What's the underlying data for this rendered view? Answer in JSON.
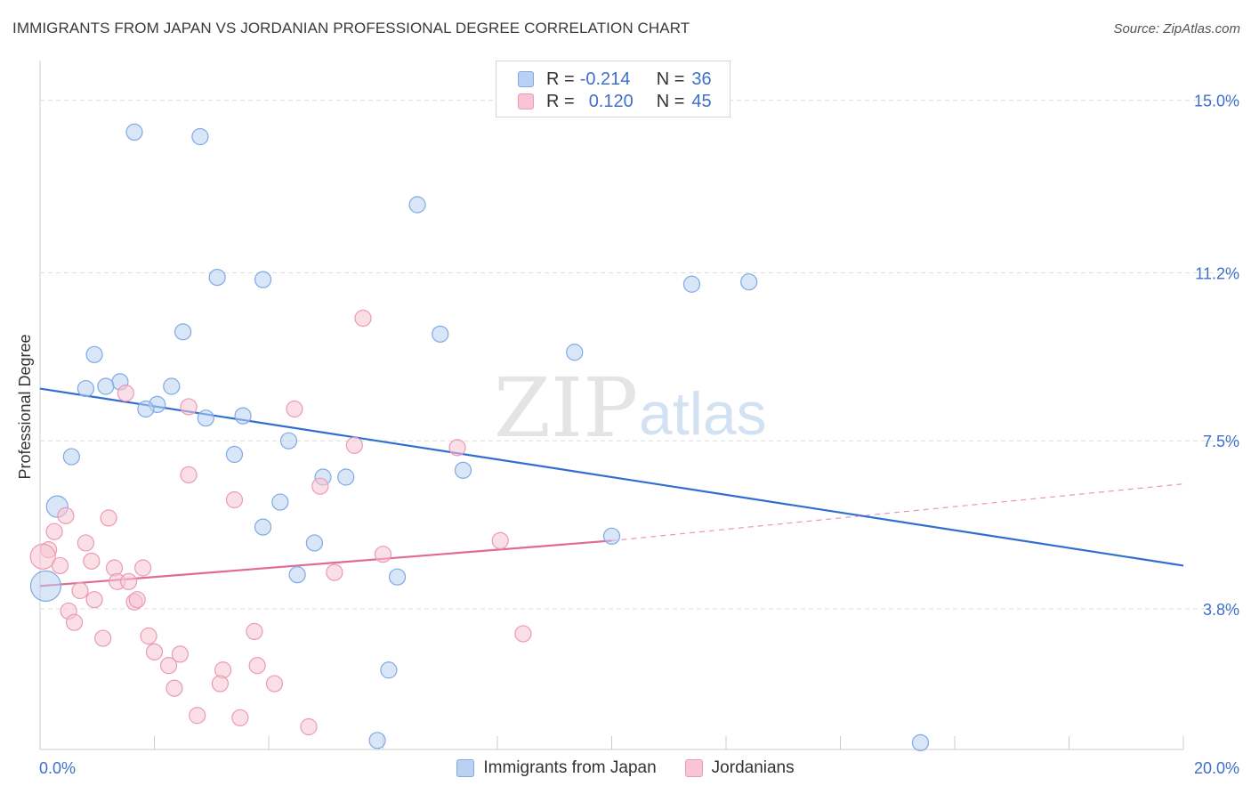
{
  "title": "IMMIGRANTS FROM JAPAN VS JORDANIAN PROFESSIONAL DEGREE CORRELATION CHART",
  "source": "Source: ZipAtlas.com",
  "watermark": {
    "zip": "ZIP",
    "atlas": "atlas"
  },
  "colors": {
    "japan_fill": "#b9d2f3",
    "japan_stroke": "#7fa9e3",
    "japan_line": "#2f6fd1",
    "jordan_fill": "#f8c5d4",
    "jordan_stroke": "#ec9ab4",
    "jordan_line": "#e06b95",
    "axis_text": "#3d6fcc",
    "grid": "#dddddd"
  },
  "legend": {
    "rows": [
      {
        "r_label": "R =",
        "r_value": "-0.214",
        "n_label": "N =",
        "n_value": "36"
      },
      {
        "r_label": "R =",
        "r_value": "0.120",
        "n_label": "N =",
        "n_value": "45"
      }
    ]
  },
  "chart_data": {
    "type": "scatter",
    "title": "IMMIGRANTS FROM JAPAN VS JORDANIAN PROFESSIONAL DEGREE CORRELATION CHART",
    "xlabel": "",
    "ylabel": "Professional Degree",
    "xlim": [
      0,
      20
    ],
    "ylim": [
      0.7,
      15.7
    ],
    "x_tick_labels": [
      "0.0%",
      "20.0%"
    ],
    "y_ticks": [
      3.8,
      7.5,
      11.2,
      15.0
    ],
    "y_tick_labels": [
      "3.8%",
      "7.5%",
      "11.2%",
      "15.0%"
    ],
    "grid": true,
    "legend_position": "top-center",
    "series": [
      {
        "name": "Immigrants from Japan",
        "points": [
          [
            1.65,
            14.3
          ],
          [
            2.8,
            14.2
          ],
          [
            6.6,
            12.7
          ],
          [
            3.1,
            11.1
          ],
          [
            3.9,
            11.05
          ],
          [
            11.4,
            10.95
          ],
          [
            12.4,
            11.0
          ],
          [
            2.5,
            9.9
          ],
          [
            7.0,
            9.85
          ],
          [
            9.35,
            9.45
          ],
          [
            0.95,
            9.4
          ],
          [
            1.4,
            8.8
          ],
          [
            0.8,
            8.65
          ],
          [
            1.15,
            8.7
          ],
          [
            2.3,
            8.7
          ],
          [
            2.05,
            8.3
          ],
          [
            1.85,
            8.2
          ],
          [
            2.9,
            8.0
          ],
          [
            3.55,
            8.05
          ],
          [
            4.35,
            7.5
          ],
          [
            3.4,
            7.2
          ],
          [
            0.55,
            7.15
          ],
          [
            7.4,
            6.85
          ],
          [
            4.95,
            6.7
          ],
          [
            5.35,
            6.7
          ],
          [
            4.2,
            6.15
          ],
          [
            0.3,
            6.05
          ],
          [
            3.9,
            5.6
          ],
          [
            4.8,
            5.25
          ],
          [
            10.0,
            5.4
          ],
          [
            4.5,
            4.55
          ],
          [
            6.25,
            4.5
          ],
          [
            0.1,
            4.3
          ],
          [
            6.1,
            2.45
          ],
          [
            5.9,
            0.9
          ],
          [
            15.4,
            0.85
          ]
        ],
        "sizes": [
          18,
          18,
          18,
          18,
          18,
          18,
          18,
          18,
          18,
          18,
          18,
          18,
          18,
          18,
          18,
          18,
          18,
          18,
          18,
          18,
          18,
          18,
          18,
          18,
          18,
          18,
          24,
          18,
          18,
          18,
          18,
          18,
          34,
          18,
          18,
          18
        ],
        "trend": {
          "x": [
            0.0,
            20.0
          ],
          "y": [
            8.65,
            4.75
          ]
        }
      },
      {
        "name": "Jordanians",
        "points": [
          [
            5.65,
            10.2
          ],
          [
            1.5,
            8.55
          ],
          [
            2.6,
            8.25
          ],
          [
            4.45,
            8.2
          ],
          [
            5.5,
            7.4
          ],
          [
            7.3,
            7.35
          ],
          [
            2.6,
            6.75
          ],
          [
            4.9,
            6.5
          ],
          [
            3.4,
            6.2
          ],
          [
            0.45,
            5.85
          ],
          [
            1.2,
            5.8
          ],
          [
            0.25,
            5.5
          ],
          [
            0.8,
            5.25
          ],
          [
            8.05,
            5.3
          ],
          [
            0.15,
            5.1
          ],
          [
            0.05,
            4.95
          ],
          [
            6.0,
            5.0
          ],
          [
            0.35,
            4.75
          ],
          [
            0.9,
            4.85
          ],
          [
            1.3,
            4.7
          ],
          [
            1.8,
            4.7
          ],
          [
            5.15,
            4.6
          ],
          [
            1.35,
            4.4
          ],
          [
            1.55,
            4.4
          ],
          [
            0.7,
            4.2
          ],
          [
            0.95,
            4.0
          ],
          [
            1.65,
            3.95
          ],
          [
            1.7,
            4.0
          ],
          [
            0.5,
            3.75
          ],
          [
            0.6,
            3.5
          ],
          [
            3.75,
            3.3
          ],
          [
            8.45,
            3.25
          ],
          [
            1.9,
            3.2
          ],
          [
            1.1,
            3.15
          ],
          [
            2.0,
            2.85
          ],
          [
            2.45,
            2.8
          ],
          [
            2.25,
            2.55
          ],
          [
            3.8,
            2.55
          ],
          [
            3.2,
            2.45
          ],
          [
            3.15,
            2.15
          ],
          [
            4.1,
            2.15
          ],
          [
            2.35,
            2.05
          ],
          [
            2.75,
            1.45
          ],
          [
            3.5,
            1.4
          ],
          [
            4.7,
            1.2
          ]
        ],
        "sizes": [
          18,
          18,
          18,
          18,
          18,
          18,
          18,
          18,
          18,
          18,
          18,
          18,
          18,
          18,
          18,
          28,
          18,
          18,
          18,
          18,
          18,
          18,
          18,
          18,
          18,
          18,
          18,
          18,
          18,
          18,
          18,
          18,
          18,
          18,
          18,
          18,
          18,
          18,
          18,
          18,
          18,
          18,
          18,
          18,
          18
        ],
        "trend": {
          "x": [
            0.0,
            10.0
          ],
          "y": [
            4.3,
            5.3
          ]
        },
        "trend_extended": {
          "x": [
            10.0,
            20.0
          ],
          "y": [
            5.3,
            6.55
          ]
        }
      }
    ]
  }
}
